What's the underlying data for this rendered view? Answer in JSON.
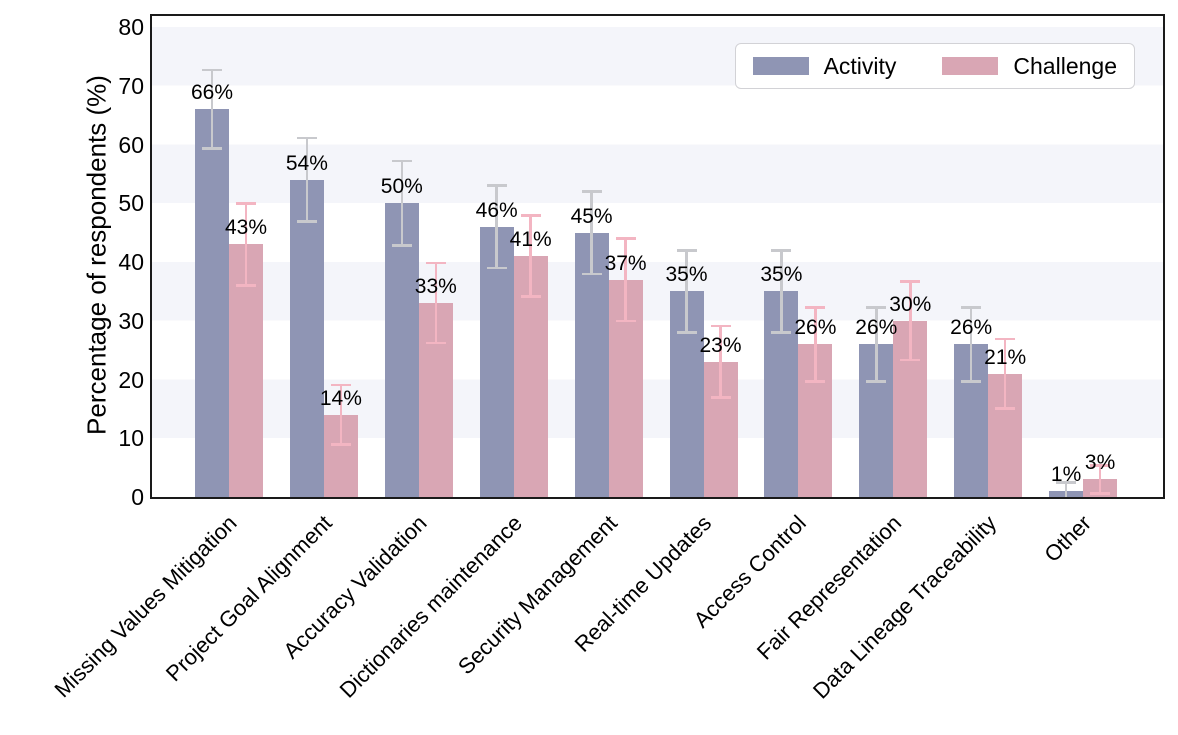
{
  "figure": {
    "background": "#ffffff"
  },
  "chart_data": {
    "type": "bar",
    "title": "",
    "xlabel": "",
    "ylabel": "Percentage of respondents (%)",
    "ylim": [
      0,
      82
    ],
    "yticks": [
      0,
      10,
      20,
      30,
      40,
      50,
      60,
      70,
      80
    ],
    "grid": "horizontal-stripes-every-10",
    "stripe_color": "#f4f5fa",
    "legend_position": "upper-right",
    "categories": [
      "Missing Values Mitigation",
      "Project Goal Alignment",
      "Accuracy Validation",
      "Dictionaries maintenance",
      "Security Management",
      "Real-time Updates",
      "Access Control",
      "Fair Representation",
      "Data Lineage Traceability",
      "Other"
    ],
    "series": [
      {
        "name": "Activity",
        "color": "#8f95b4",
        "error_color": "#c8c9cd",
        "values": [
          66,
          54,
          50,
          46,
          45,
          35,
          35,
          26,
          26,
          1
        ],
        "errors": [
          6.7,
          7.1,
          7.2,
          7.0,
          7.0,
          7.0,
          7.0,
          6.3,
          6.3,
          1.5
        ],
        "labels": [
          "66%",
          "54%",
          "50%",
          "46%",
          "45%",
          "35%",
          "35%",
          "26%",
          "26%",
          "1%"
        ]
      },
      {
        "name": "Challenge",
        "color": "#d9a6b4",
        "error_color": "#f3b5c2",
        "values": [
          43,
          14,
          33,
          41,
          37,
          23,
          26,
          30,
          21,
          3
        ],
        "errors": [
          7.0,
          5.1,
          6.8,
          6.9,
          7.0,
          6.1,
          6.3,
          6.7,
          5.9,
          2.4
        ],
        "labels": [
          "43%",
          "14%",
          "33%",
          "41%",
          "37%",
          "23%",
          "26%",
          "30%",
          "21%",
          "3%"
        ]
      }
    ]
  }
}
